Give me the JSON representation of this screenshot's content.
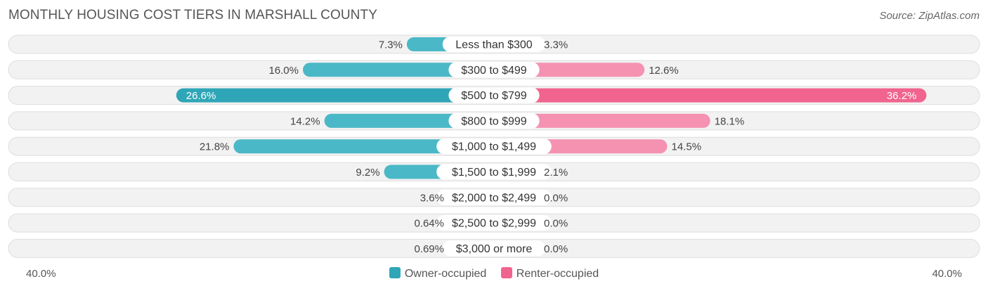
{
  "chart_data": {
    "type": "bar",
    "orientation": "horizontal-diverging",
    "title": "MONTHLY HOUSING COST TIERS IN MARSHALL COUNTY",
    "source": "Source: ZipAtlas.com",
    "categories": [
      "Less than $300",
      "$300 to $499",
      "$500 to $799",
      "$800 to $999",
      "$1,000 to $1,499",
      "$1,500 to $1,999",
      "$2,000 to $2,499",
      "$2,500 to $2,999",
      "$3,000 or more"
    ],
    "series": [
      {
        "name": "Owner-occupied",
        "color": "#4bb8c7",
        "highlight_color": "#2fa6b7",
        "values": [
          7.3,
          16.0,
          26.6,
          14.2,
          21.8,
          9.2,
          3.6,
          0.64,
          0.69
        ],
        "labels": [
          "7.3%",
          "16.0%",
          "26.6%",
          "14.2%",
          "21.8%",
          "9.2%",
          "3.6%",
          "0.64%",
          "0.69%"
        ]
      },
      {
        "name": "Renter-occupied",
        "color": "#f592b2",
        "highlight_color": "#f0648f",
        "values": [
          3.3,
          12.6,
          36.2,
          18.1,
          14.5,
          2.1,
          0.0,
          0.0,
          0.0
        ],
        "labels": [
          "3.3%",
          "12.6%",
          "36.2%",
          "18.1%",
          "14.5%",
          "2.1%",
          "0.0%",
          "0.0%",
          "0.0%"
        ]
      }
    ],
    "xlim": [
      0,
      40
    ],
    "axis_min_label": "40.0%",
    "axis_max_label": "40.0%",
    "highlight_index": 2,
    "legend_position": "bottom-center"
  }
}
